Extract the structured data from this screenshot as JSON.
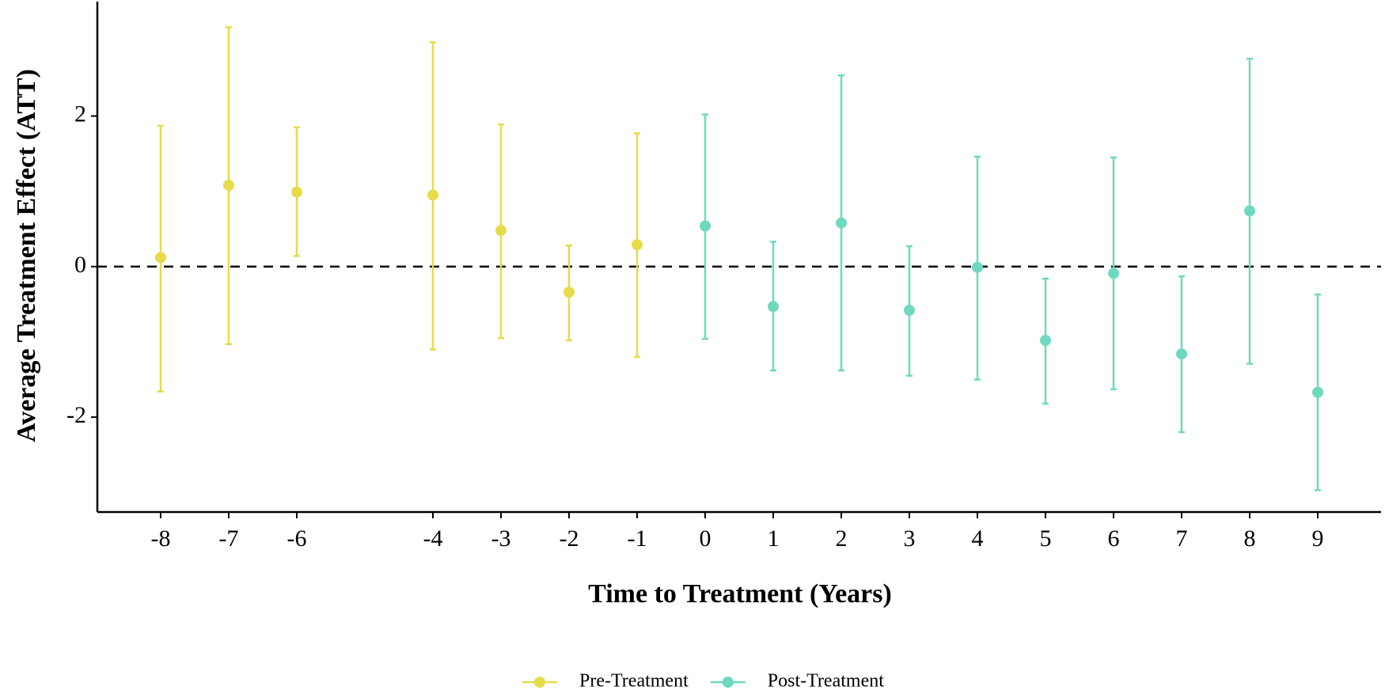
{
  "chart_data": {
    "type": "errorbar",
    "x_label": "Time to Treatment (Years)",
    "y_label": "Average Treatment Effect (ATT)",
    "xlim": [
      -8.93,
      9.93
    ],
    "ylim": [
      -3.26,
      3.52
    ],
    "xticks": [
      -8,
      -7,
      -6,
      -4,
      -3,
      -2,
      -1,
      0,
      1,
      2,
      3,
      4,
      5,
      6,
      7,
      8,
      9
    ],
    "yticks": [
      -2,
      0,
      2
    ],
    "reference_line": 0,
    "legend": "bottom",
    "series": [
      {
        "name": "Pre-Treatment",
        "color": "#e6dc4a",
        "x": [
          -8,
          -7,
          -6,
          -4,
          -3,
          -2,
          -1
        ],
        "values": [
          0.12,
          1.08,
          0.99,
          0.95,
          0.48,
          -0.34,
          0.29
        ],
        "lower": [
          -1.66,
          -1.03,
          0.14,
          -1.1,
          -0.95,
          -0.98,
          -1.2
        ],
        "upper": [
          1.87,
          3.18,
          1.85,
          2.98,
          1.89,
          0.28,
          1.77
        ]
      },
      {
        "name": "Post-Treatment",
        "color": "#6fd9bf",
        "x": [
          0,
          1,
          2,
          3,
          4,
          5,
          6,
          7,
          8,
          9
        ],
        "values": [
          0.54,
          -0.53,
          0.58,
          -0.58,
          -0.01,
          -0.98,
          -0.09,
          -1.16,
          0.74,
          -1.67
        ],
        "lower": [
          -0.96,
          -1.38,
          -1.38,
          -1.45,
          -1.5,
          -1.82,
          -1.63,
          -2.2,
          -1.29,
          -2.97
        ],
        "upper": [
          2.02,
          0.33,
          2.54,
          0.27,
          1.46,
          -0.16,
          1.45,
          -0.13,
          2.76,
          -0.37
        ]
      }
    ]
  }
}
